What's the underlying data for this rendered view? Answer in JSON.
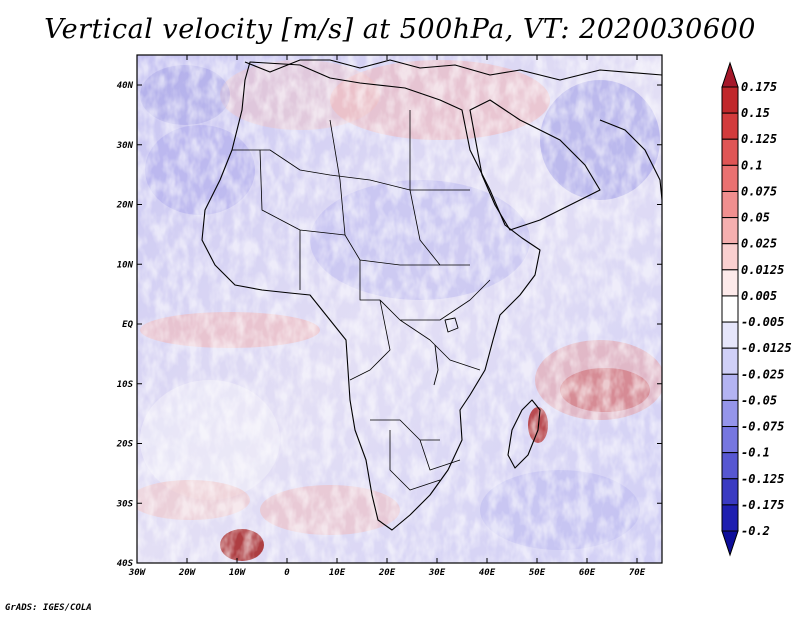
{
  "title": "Vertical velocity [m/s] at 500hPa, VT: 2020030600",
  "credit": "GrADS: IGES/COLA",
  "lat_labels": [
    "40N",
    "30N",
    "20N",
    "10N",
    "EQ",
    "10S",
    "20S",
    "30S",
    "40S"
  ],
  "lon_labels": [
    "30W",
    "20W",
    "10W",
    "0",
    "10E",
    "20E",
    "30E",
    "40E",
    "50E",
    "60E",
    "70E"
  ],
  "colorbar": {
    "levels": [
      "0.175",
      "0.15",
      "0.125",
      "0.1",
      "0.075",
      "0.05",
      "0.025",
      "0.0125",
      "0.005",
      "-0.005",
      "-0.0125",
      "-0.025",
      "-0.05",
      "-0.075",
      "-0.1",
      "-0.125",
      "-0.175",
      "-0.2"
    ],
    "colors": [
      "#a5182a",
      "#c0282b",
      "#d33b3c",
      "#e05555",
      "#ea7171",
      "#f08f8f",
      "#f5afaf",
      "#fad0d0",
      "#fdeaea",
      "#ffffff",
      "#e6e6fb",
      "#cfcff7",
      "#b3b3f2",
      "#9595ea",
      "#7676e0",
      "#5757d2",
      "#3a3ac2",
      "#1f1fb0",
      "#0d0d9a"
    ]
  }
}
